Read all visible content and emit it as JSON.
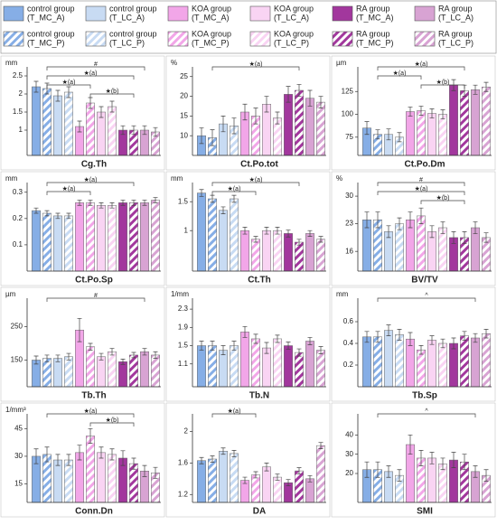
{
  "legend": [
    {
      "name": [
        "control group",
        "(T_MC_A)"
      ],
      "color": "#86aee6",
      "hatched": false
    },
    {
      "name": [
        "control group",
        "(T_LC_A)"
      ],
      "color": "#c8dbf3",
      "hatched": false
    },
    {
      "name": [
        "KOA group",
        "(T_MC_A)"
      ],
      "color": "#f2a6e8",
      "hatched": false
    },
    {
      "name": [
        "KOA group",
        "(T_LC_A)"
      ],
      "color": "#f9d4f3",
      "hatched": false
    },
    {
      "name": [
        "RA group",
        "(T_MC_A)"
      ],
      "color": "#a2379d",
      "hatched": false
    },
    {
      "name": [
        "RA group",
        "(T_LC_A)"
      ],
      "color": "#d8a3d3",
      "hatched": false
    },
    {
      "name": [
        "control group",
        "(T_MC_P)"
      ],
      "color": "#86aee6",
      "hatched": true
    },
    {
      "name": [
        "control group",
        "(T_LC_P)"
      ],
      "color": "#c8dbf3",
      "hatched": true
    },
    {
      "name": [
        "KOA group",
        "(T_MC_P)"
      ],
      "color": "#f2a6e8",
      "hatched": true
    },
    {
      "name": [
        "KOA group",
        "(T_LC_P)"
      ],
      "color": "#f9d4f3",
      "hatched": true
    },
    {
      "name": [
        "RA group",
        "(T_MC_P)"
      ],
      "color": "#a2379d",
      "hatched": true
    },
    {
      "name": [
        "RA group",
        "(T_LC_P)"
      ],
      "color": "#d8a3d3",
      "hatched": true
    }
  ],
  "chart_data": [
    {
      "type": "bar",
      "xlabel": "Cg.Th",
      "unit": "mm",
      "ylim": [
        0.3,
        2.7
      ],
      "yticks": [
        1.0,
        1.5,
        2.0,
        2.5
      ],
      "values": [
        2.2,
        2.15,
        1.95,
        2.05,
        1.1,
        1.75,
        1.5,
        1.65,
        1.0,
        1.0,
        1.0,
        0.95
      ],
      "errors": [
        0.15,
        0.15,
        0.15,
        0.15,
        0.15,
        0.15,
        0.15,
        0.15,
        0.12,
        0.12,
        0.12,
        0.12
      ],
      "annotations": [
        {
          "label": "#",
          "from": 1,
          "to": 10
        },
        {
          "label": "★(a)",
          "from": 1,
          "to": 9
        },
        {
          "label": "★(a)",
          "from": 1,
          "to": 5
        },
        {
          "label": "★(b)",
          "from": 5,
          "to": 9
        }
      ]
    },
    {
      "type": "bar",
      "xlabel": "Ct.Po.tot",
      "unit": "%",
      "ylim": [
        5,
        27
      ],
      "yticks": [
        10,
        15,
        20,
        25
      ],
      "values": [
        10,
        9.5,
        13,
        12.5,
        16,
        15,
        18,
        14.5,
        20.5,
        21.5,
        19.5,
        18.5
      ],
      "errors": [
        2,
        2,
        2,
        2,
        2,
        2,
        2,
        1.5,
        2,
        1.5,
        2,
        1.5
      ],
      "annotations": [
        {
          "label": "★(a)",
          "from": 1,
          "to": 9
        }
      ]
    },
    {
      "type": "bar",
      "xlabel": "Ct.Po.Dm",
      "unit": "µm",
      "ylim": [
        55,
        150
      ],
      "yticks": [
        75,
        100,
        125
      ],
      "values": [
        85,
        78,
        78,
        75,
        103,
        104,
        101,
        100,
        132,
        126,
        127,
        130
      ],
      "errors": [
        7,
        5,
        6,
        5,
        5,
        5,
        5,
        5,
        6,
        6,
        5,
        5
      ],
      "annotations": [
        {
          "label": "★(a)",
          "from": 1,
          "to": 9
        },
        {
          "label": "★(a)",
          "from": 1,
          "to": 5
        },
        {
          "label": "★(b)",
          "from": 5,
          "to": 9
        }
      ]
    },
    {
      "type": "bar",
      "xlabel": "Ct.Po.Sp",
      "unit": "mm",
      "ylim": [
        0.0,
        0.33
      ],
      "yticks": [
        0.1,
        0.2,
        0.3
      ],
      "values": [
        0.23,
        0.22,
        0.21,
        0.21,
        0.26,
        0.26,
        0.25,
        0.25,
        0.26,
        0.26,
        0.26,
        0.27
      ],
      "errors": [
        0.01,
        0.01,
        0.01,
        0.01,
        0.01,
        0.01,
        0.01,
        0.01,
        0.01,
        0.01,
        0.01,
        0.01
      ],
      "annotations": [
        {
          "label": "★(a)",
          "from": 1,
          "to": 9
        },
        {
          "label": "★(a)",
          "from": 1,
          "to": 5
        }
      ]
    },
    {
      "type": "bar",
      "xlabel": "Ct.Th",
      "unit": "mm",
      "ylim": [
        0.3,
        1.8
      ],
      "yticks": [
        1.0,
        1.5
      ],
      "values": [
        1.65,
        1.55,
        1.35,
        1.55,
        1.0,
        0.85,
        1.0,
        1.0,
        0.95,
        0.8,
        0.95,
        0.85
      ],
      "errors": [
        0.06,
        0.06,
        0.06,
        0.06,
        0.06,
        0.05,
        0.06,
        0.06,
        0.06,
        0.05,
        0.05,
        0.05
      ],
      "annotations": [
        {
          "label": "★(a)",
          "from": 1,
          "to": 9
        },
        {
          "label": "★(a)",
          "from": 1,
          "to": 5
        }
      ]
    },
    {
      "type": "bar",
      "xlabel": "BV/TV",
      "unit": "%",
      "ylim": [
        11,
        33
      ],
      "yticks": [
        16,
        23,
        30
      ],
      "values": [
        24,
        24,
        21,
        23,
        24,
        25,
        21,
        22,
        19.5,
        19.5,
        22,
        19.5
      ],
      "errors": [
        2,
        2,
        1.5,
        1.5,
        2,
        2,
        1.5,
        1.5,
        1.5,
        1.5,
        1.5,
        1.2
      ],
      "annotations": [
        {
          "label": "#",
          "from": 1,
          "to": 9
        },
        {
          "label": "★(a)",
          "from": 1,
          "to": 9
        },
        {
          "label": "★(b)",
          "from": 5,
          "to": 9
        }
      ]
    },
    {
      "type": "bar",
      "xlabel": "Tb.Th",
      "unit": "µm",
      "ylim": [
        70,
        330
      ],
      "yticks": [
        150,
        250
      ],
      "values": [
        150,
        155,
        155,
        160,
        240,
        190,
        160,
        175,
        145,
        165,
        175,
        165
      ],
      "errors": [
        12,
        10,
        10,
        10,
        35,
        10,
        10,
        10,
        8,
        8,
        10,
        10
      ],
      "annotations": [
        {
          "label": "#",
          "from": 1,
          "to": 10
        }
      ]
    },
    {
      "type": "bar",
      "xlabel": "Tb.N",
      "unit": "1/mm",
      "ylim": [
        0.6,
        2.5
      ],
      "yticks": [
        1.1,
        1.5,
        1.9,
        2.3
      ],
      "values": [
        1.5,
        1.5,
        1.4,
        1.5,
        1.8,
        1.65,
        1.45,
        1.65,
        1.5,
        1.35,
        1.6,
        1.4
      ],
      "errors": [
        0.1,
        0.1,
        0.1,
        0.1,
        0.12,
        0.1,
        0.12,
        0.08,
        0.08,
        0.08,
        0.08,
        0.08
      ],
      "annotations": []
    },
    {
      "type": "bar",
      "xlabel": "Tb.Sp",
      "unit": "mm",
      "ylim": [
        0,
        0.8
      ],
      "yticks": [
        0.2,
        0.4,
        0.6
      ],
      "values": [
        0.46,
        0.46,
        0.52,
        0.48,
        0.44,
        0.34,
        0.43,
        0.4,
        0.4,
        0.47,
        0.45,
        0.49
      ],
      "errors": [
        0.05,
        0.05,
        0.05,
        0.05,
        0.06,
        0.04,
        0.04,
        0.04,
        0.05,
        0.04,
        0.04,
        0.04
      ],
      "annotations": [
        {
          "label": "^",
          "from": 1,
          "to": 10
        }
      ]
    },
    {
      "type": "bar",
      "xlabel": "Conn.Dn",
      "unit": "1/mm³",
      "ylim": [
        5,
        52
      ],
      "yticks": [
        15,
        30,
        45
      ],
      "values": [
        30,
        31,
        28,
        28,
        32,
        41,
        32,
        31,
        29,
        26,
        22,
        21
      ],
      "errors": [
        4,
        4,
        3,
        3,
        4,
        4,
        3,
        3,
        4,
        3,
        3,
        3
      ],
      "annotations": [
        {
          "label": "★(a)",
          "from": 1,
          "to": 9
        },
        {
          "label": "★(b)",
          "from": 5,
          "to": 9
        }
      ]
    },
    {
      "type": "bar",
      "xlabel": "DA",
      "unit": "",
      "ylim": [
        1.1,
        2.2
      ],
      "yticks": [
        1.2,
        1.6,
        2.0
      ],
      "values": [
        1.63,
        1.65,
        1.75,
        1.72,
        1.38,
        1.45,
        1.55,
        1.42,
        1.35,
        1.5,
        1.4,
        1.82
      ],
      "errors": [
        0.04,
        0.04,
        0.04,
        0.04,
        0.04,
        0.04,
        0.05,
        0.04,
        0.04,
        0.04,
        0.04,
        0.04
      ],
      "annotations": [
        {
          "label": "★(a)",
          "from": 1,
          "to": 5
        }
      ]
    },
    {
      "type": "bar",
      "xlabel": "SMI",
      "unit": "",
      "ylim": [
        5,
        50
      ],
      "yticks": [
        20,
        30,
        40
      ],
      "values": [
        22,
        22,
        21,
        19,
        35,
        28,
        28,
        25,
        27,
        26,
        21,
        19
      ],
      "errors": [
        4,
        4,
        3,
        3,
        5,
        4,
        3,
        3,
        4,
        4,
        3,
        3
      ],
      "annotations": [
        {
          "label": "^",
          "from": 1,
          "to": 10
        }
      ]
    }
  ]
}
